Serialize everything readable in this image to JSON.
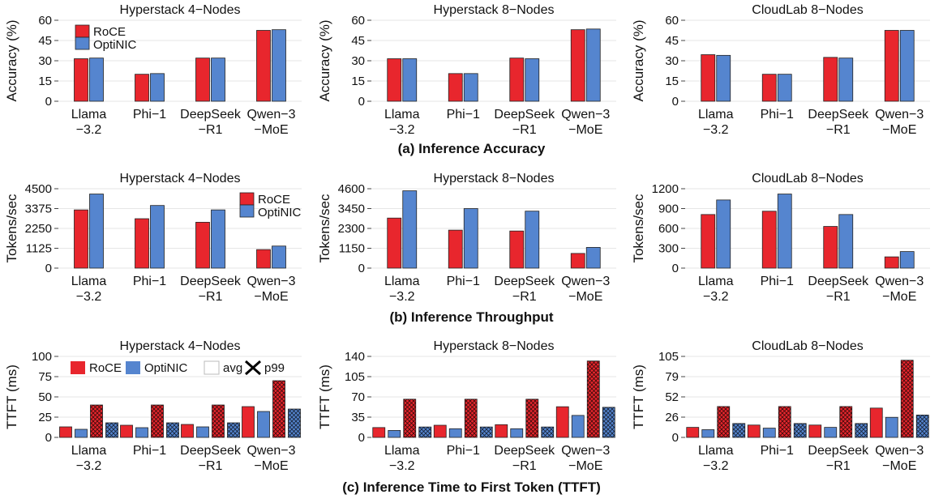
{
  "figure_captions": {
    "accuracy": "(a) Inference Accuracy",
    "throughput": "(b) Inference Throughput",
    "ttft": "(c) Inference Time to First Token (TTFT)"
  },
  "colors": {
    "roce": "#e8262d",
    "optinic": "#5585cf",
    "grid": "#e6e6e6",
    "text": "#111111"
  },
  "legend": {
    "roce": "RoCE",
    "optinic": "OptiNIC",
    "avg": "avg",
    "p99": "p99"
  },
  "chart_data": [
    {
      "id": "acc-h4",
      "type": "bar",
      "title": "Hyperstack 4−Nodes",
      "ylabel": "Accuracy (%)",
      "ylim": [
        0,
        60
      ],
      "yticks": [
        "0",
        "15",
        "30",
        "45",
        "60"
      ],
      "categories": [
        [
          "Llama",
          "−3.2"
        ],
        [
          "Phi−1"
        ],
        [
          "DeepSeek",
          "−R1"
        ],
        [
          "Qwen−3",
          "−MoE"
        ]
      ],
      "series": [
        {
          "name": "RoCE",
          "values": [
            31.5,
            20.0,
            32.0,
            52.5
          ]
        },
        {
          "name": "OptiNIC",
          "values": [
            32.0,
            20.5,
            32.0,
            53.0
          ]
        }
      ],
      "legend_position": "top-left"
    },
    {
      "id": "acc-h8",
      "type": "bar",
      "title": "Hyperstack 8−Nodes",
      "ylabel": "Accuracy (%)",
      "ylim": [
        0,
        60
      ],
      "yticks": [
        "0",
        "15",
        "30",
        "45",
        "60"
      ],
      "categories": [
        [
          "Llama",
          "−3.2"
        ],
        [
          "Phi−1"
        ],
        [
          "DeepSeek",
          "−R1"
        ],
        [
          "Qwen−3",
          "−MoE"
        ]
      ],
      "series": [
        {
          "name": "RoCE",
          "values": [
            31.5,
            20.5,
            32.0,
            53.0
          ]
        },
        {
          "name": "OptiNIC",
          "values": [
            31.5,
            20.5,
            31.5,
            53.5
          ]
        }
      ]
    },
    {
      "id": "acc-cl8",
      "type": "bar",
      "title": "CloudLab 8−Nodes",
      "ylabel": "Accuracy (%)",
      "ylim": [
        0,
        60
      ],
      "yticks": [
        "0",
        "15",
        "30",
        "45",
        "60"
      ],
      "categories": [
        [
          "Llama",
          "−3.2"
        ],
        [
          "Phi−1"
        ],
        [
          "DeepSeek",
          "−R1"
        ],
        [
          "Qwen−3",
          "−MoE"
        ]
      ],
      "series": [
        {
          "name": "RoCE",
          "values": [
            34.5,
            20.0,
            32.5,
            52.5
          ]
        },
        {
          "name": "OptiNIC",
          "values": [
            34.0,
            20.0,
            32.0,
            52.5
          ]
        }
      ]
    },
    {
      "id": "thr-h4",
      "type": "bar",
      "title": "Hyperstack 4−Nodes",
      "ylabel": "Tokens/sec",
      "ylim": [
        0,
        4500
      ],
      "yticks": [
        "0",
        "1125",
        "2250",
        "3375",
        "4500"
      ],
      "categories": [
        [
          "Llama",
          "−3.2"
        ],
        [
          "Phi−1"
        ],
        [
          "DeepSeek",
          "−R1"
        ],
        [
          "Qwen−3",
          "−MoE"
        ]
      ],
      "series": [
        {
          "name": "RoCE",
          "values": [
            3300,
            2800,
            2600,
            1050
          ]
        },
        {
          "name": "OptiNIC",
          "values": [
            4200,
            3550,
            3300,
            1250
          ]
        }
      ],
      "legend_position": "top-right"
    },
    {
      "id": "thr-h8",
      "type": "bar",
      "title": "Hyperstack 8−Nodes",
      "ylabel": "Tokens/sec",
      "ylim": [
        0,
        4600
      ],
      "yticks": [
        "0",
        "1150",
        "2300",
        "3450",
        "4600"
      ],
      "categories": [
        [
          "Llama",
          "−3.2"
        ],
        [
          "Phi−1"
        ],
        [
          "DeepSeek",
          "−R1"
        ],
        [
          "Qwen−3",
          "−MoE"
        ]
      ],
      "series": [
        {
          "name": "RoCE",
          "values": [
            2900,
            2200,
            2150,
            850
          ]
        },
        {
          "name": "OptiNIC",
          "values": [
            4480,
            3450,
            3300,
            1200
          ]
        }
      ]
    },
    {
      "id": "thr-cl8",
      "type": "bar",
      "title": "CloudLab 8−Nodes",
      "ylabel": "Tokens/sec",
      "ylim": [
        0,
        1200
      ],
      "yticks": [
        "0",
        "300",
        "600",
        "900",
        "1200"
      ],
      "categories": [
        [
          "Llama",
          "−3.2"
        ],
        [
          "Phi−1"
        ],
        [
          "DeepSeek",
          "−R1"
        ],
        [
          "Qwen−3",
          "−MoE"
        ]
      ],
      "series": [
        {
          "name": "RoCE",
          "values": [
            810,
            860,
            630,
            170
          ]
        },
        {
          "name": "OptiNIC",
          "values": [
            1030,
            1120,
            810,
            250
          ]
        }
      ]
    },
    {
      "id": "ttft-h4",
      "type": "bar",
      "title": "Hyperstack 4−Nodes",
      "ylabel": "TTFT (ms)",
      "ylim": [
        0,
        100
      ],
      "yticks": [
        "0",
        "25",
        "50",
        "75",
        "100"
      ],
      "categories": [
        [
          "Llama",
          "−3.2"
        ],
        [
          "Phi−1"
        ],
        [
          "DeepSeek",
          "−R1"
        ],
        [
          "Qwen−3",
          "−MoE"
        ]
      ],
      "series": [
        {
          "name": "RoCE avg",
          "values": [
            13,
            15,
            16,
            38
          ]
        },
        {
          "name": "OptiNIC avg",
          "values": [
            10,
            12,
            13,
            32
          ]
        },
        {
          "name": "RoCE p99",
          "values": [
            40,
            40,
            40,
            70
          ]
        },
        {
          "name": "OptiNIC p99",
          "values": [
            18,
            18,
            18,
            35
          ]
        }
      ],
      "legend_position": "top"
    },
    {
      "id": "ttft-h8",
      "type": "bar",
      "title": "Hyperstack 8−Nodes",
      "ylabel": "TTFT (ms)",
      "ylim": [
        0,
        140
      ],
      "yticks": [
        "0",
        "35",
        "70",
        "105",
        "140"
      ],
      "categories": [
        [
          "Llama",
          "−3.2"
        ],
        [
          "Phi−1"
        ],
        [
          "DeepSeek",
          "−R1"
        ],
        [
          "Qwen−3",
          "−MoE"
        ]
      ],
      "series": [
        {
          "name": "RoCE avg",
          "values": [
            17,
            21,
            22,
            53
          ]
        },
        {
          "name": "OptiNIC avg",
          "values": [
            12,
            15,
            15,
            38
          ]
        },
        {
          "name": "RoCE p99",
          "values": [
            66,
            66,
            66,
            132
          ]
        },
        {
          "name": "OptiNIC p99",
          "values": [
            18,
            18,
            18,
            52
          ]
        }
      ]
    },
    {
      "id": "ttft-cl8",
      "type": "bar",
      "title": "CloudLab 8−Nodes",
      "ylabel": "TTFT (ms)",
      "ylim": [
        0,
        105
      ],
      "yticks": [
        "0",
        "26",
        "52",
        "79",
        "105"
      ],
      "categories": [
        [
          "Llama",
          "−3.2"
        ],
        [
          "Phi−1"
        ],
        [
          "DeepSeek",
          "−R1"
        ],
        [
          "Qwen−3",
          "−MoE"
        ]
      ],
      "series": [
        {
          "name": "RoCE avg",
          "values": [
            13,
            16,
            16,
            38
          ]
        },
        {
          "name": "OptiNIC avg",
          "values": [
            10,
            12,
            13,
            26
          ]
        },
        {
          "name": "RoCE p99",
          "values": [
            40,
            40,
            40,
            100
          ]
        },
        {
          "name": "OptiNIC p99",
          "values": [
            18,
            18,
            18,
            29
          ]
        }
      ]
    }
  ]
}
